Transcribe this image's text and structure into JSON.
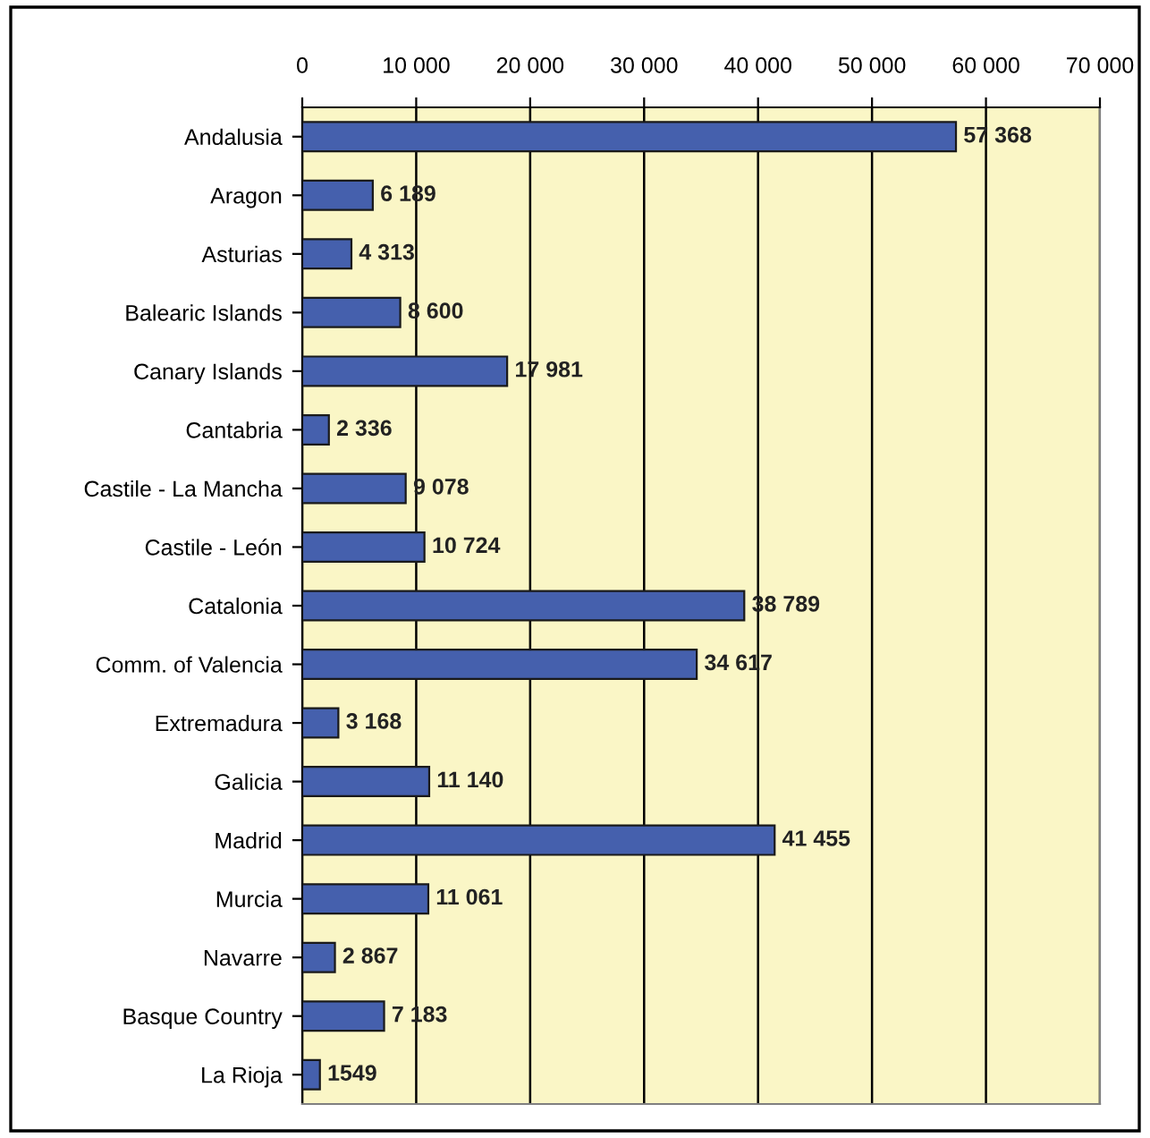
{
  "chart_data": {
    "type": "bar",
    "orientation": "horizontal",
    "categories": [
      "Andalusia",
      "Aragon",
      "Asturias",
      "Balearic Islands",
      "Canary Islands",
      "Cantabria",
      "Castile - La Mancha",
      "Castile - León",
      "Catalonia",
      "Comm. of Valencia",
      "Extremadura",
      "Galicia",
      "Madrid",
      "Murcia",
      "Navarre",
      "Basque Country",
      "La Rioja"
    ],
    "values": [
      57368,
      6189,
      4313,
      8600,
      17981,
      2336,
      9078,
      10724,
      38789,
      34617,
      3168,
      11140,
      41455,
      11061,
      2867,
      7183,
      1549
    ],
    "value_labels": [
      "57 368",
      "6 189",
      "4 313",
      "8 600",
      "17 981",
      "2 336",
      "9 078",
      "10 724",
      "38 789",
      "34 617",
      "3 168",
      "11 140",
      "41 455",
      "11 061",
      "2 867",
      "7 183",
      "1549"
    ],
    "color": "#4560ad",
    "xlim": [
      0,
      70000
    ],
    "xticks": [
      0,
      {
        "value": 10000,
        "label": "10 000"
      },
      {
        "value": 20000,
        "label": "20 000"
      },
      {
        "value": 30000,
        "label": "30 000"
      },
      {
        "value": 40000,
        "label": "40 000"
      },
      {
        "value": 50000,
        "label": "50 000"
      },
      {
        "value": 60000,
        "label": "60 000"
      },
      {
        "value": 70000,
        "label": "70 000"
      }
    ],
    "grid": "x"
  }
}
